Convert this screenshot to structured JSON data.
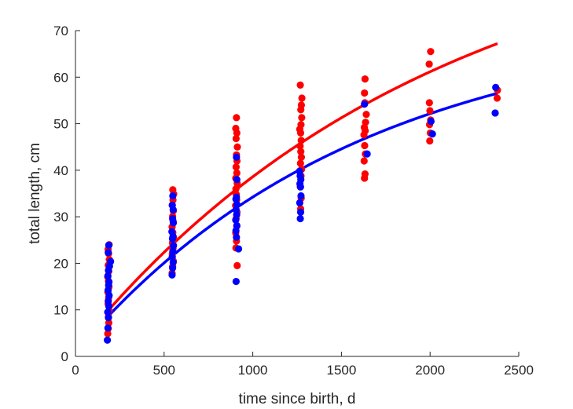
{
  "chart_data": {
    "type": "scatter",
    "xlabel": "time since birth, d",
    "ylabel": "total length, cm",
    "xlim": [
      0,
      2500
    ],
    "ylim": [
      0,
      70
    ],
    "xticks": [
      0,
      500,
      1000,
      1500,
      2000,
      2500
    ],
    "yticks": [
      0,
      10,
      20,
      30,
      40,
      50,
      60,
      70
    ],
    "grid": false,
    "legend": "none",
    "series": [
      {
        "color": "#ff0000",
        "points": [
          [
            182,
            4.9
          ],
          [
            185,
            6.0
          ],
          [
            188,
            7.2
          ],
          [
            186,
            8.5
          ],
          [
            190,
            9.8
          ],
          [
            184,
            11.3
          ],
          [
            187,
            12.6
          ],
          [
            183,
            13.8
          ],
          [
            189,
            14.9
          ],
          [
            186,
            16.2
          ],
          [
            182,
            17.1
          ],
          [
            188,
            18.3
          ],
          [
            185,
            19.6
          ],
          [
            191,
            20.8
          ],
          [
            187,
            22.1
          ],
          [
            184,
            23.0
          ],
          [
            190,
            24.0
          ],
          [
            545,
            17.9
          ],
          [
            548,
            19.3
          ],
          [
            552,
            20.5
          ],
          [
            546,
            22.0
          ],
          [
            550,
            23.2
          ],
          [
            547,
            24.4
          ],
          [
            553,
            25.6
          ],
          [
            549,
            26.6
          ],
          [
            545,
            27.8
          ],
          [
            551,
            29.0
          ],
          [
            548,
            30.1
          ],
          [
            552,
            31.3
          ],
          [
            546,
            32.5
          ],
          [
            550,
            33.6
          ],
          [
            554,
            34.9
          ],
          [
            549,
            35.8
          ],
          [
            905,
            23.3
          ],
          [
            912,
            19.5
          ],
          [
            908,
            24.8
          ],
          [
            904,
            26.5
          ],
          [
            910,
            28.0
          ],
          [
            906,
            29.6
          ],
          [
            911,
            31.0
          ],
          [
            903,
            32.4
          ],
          [
            909,
            33.6
          ],
          [
            907,
            34.8
          ],
          [
            905,
            36.0
          ],
          [
            912,
            37.2
          ],
          [
            904,
            38.3
          ],
          [
            910,
            39.4
          ],
          [
            906,
            40.7
          ],
          [
            911,
            42.0
          ],
          [
            908,
            43.3
          ],
          [
            913,
            45.0
          ],
          [
            906,
            46.8
          ],
          [
            910,
            48.0
          ],
          [
            904,
            49.0
          ],
          [
            908,
            51.3
          ],
          [
            1270,
            31.7
          ],
          [
            1273,
            34.0
          ],
          [
            1268,
            36.5
          ],
          [
            1272,
            38.8
          ],
          [
            1275,
            40.2
          ],
          [
            1269,
            41.5
          ],
          [
            1274,
            42.8
          ],
          [
            1271,
            44.0
          ],
          [
            1267,
            45.2
          ],
          [
            1273,
            46.4
          ],
          [
            1270,
            48.0
          ],
          [
            1265,
            48.8
          ],
          [
            1272,
            49.8
          ],
          [
            1276,
            51.3
          ],
          [
            1271,
            53.0
          ],
          [
            1274,
            54.0
          ],
          [
            1277,
            55.5
          ],
          [
            1268,
            58.3
          ],
          [
            1630,
            38.3
          ],
          [
            1633,
            39.2
          ],
          [
            1628,
            42.0
          ],
          [
            1635,
            43.5
          ],
          [
            1631,
            45.3
          ],
          [
            1627,
            47.6
          ],
          [
            1634,
            48.5
          ],
          [
            1629,
            49.2
          ],
          [
            1636,
            50.3
          ],
          [
            1640,
            52.0
          ],
          [
            1632,
            54.5
          ],
          [
            1630,
            56.6
          ],
          [
            1633,
            59.6
          ],
          [
            1998,
            46.3
          ],
          [
            2001,
            48.0
          ],
          [
            1997,
            49.8
          ],
          [
            2003,
            50.8
          ],
          [
            1999,
            52.8
          ],
          [
            1996,
            54.5
          ],
          [
            1995,
            62.8
          ],
          [
            2003,
            65.5
          ],
          [
            2378,
            55.5
          ],
          [
            2380,
            57.2
          ]
        ]
      },
      {
        "color": "#0000ff",
        "points": [
          [
            180,
            3.5
          ],
          [
            183,
            6.1
          ],
          [
            186,
            8.3
          ],
          [
            182,
            9.5
          ],
          [
            188,
            10.8
          ],
          [
            185,
            11.9
          ],
          [
            190,
            13.1
          ],
          [
            184,
            14.2
          ],
          [
            187,
            15.3
          ],
          [
            189,
            16.0
          ],
          [
            183,
            17.3
          ],
          [
            186,
            18.5
          ],
          [
            192,
            19.4
          ],
          [
            198,
            20.4
          ],
          [
            185,
            22.3
          ],
          [
            188,
            23.9
          ],
          [
            545,
            17.5
          ],
          [
            548,
            19.0
          ],
          [
            551,
            20.2
          ],
          [
            546,
            21.4
          ],
          [
            549,
            22.6
          ],
          [
            553,
            23.8
          ],
          [
            547,
            25.3
          ],
          [
            550,
            25.8
          ],
          [
            544,
            26.8
          ],
          [
            552,
            28.7
          ],
          [
            548,
            29.6
          ],
          [
            551,
            31.5
          ],
          [
            546,
            32.5
          ],
          [
            549,
            34.5
          ],
          [
            906,
            16.1
          ],
          [
            920,
            23.1
          ],
          [
            908,
            25.6
          ],
          [
            905,
            27.0
          ],
          [
            910,
            28.1
          ],
          [
            904,
            29.3
          ],
          [
            909,
            30.4
          ],
          [
            906,
            31.5
          ],
          [
            911,
            32.6
          ],
          [
            905,
            33.8
          ],
          [
            908,
            34.2
          ],
          [
            910,
            38.0
          ],
          [
            908,
            42.8
          ],
          [
            1268,
            29.6
          ],
          [
            1270,
            31.0
          ],
          [
            1265,
            33.0
          ],
          [
            1272,
            34.5
          ],
          [
            1269,
            36.4
          ],
          [
            1266,
            37.1
          ],
          [
            1271,
            38.0
          ],
          [
            1267,
            38.8
          ],
          [
            1264,
            39.8
          ],
          [
            1645,
            43.5
          ],
          [
            1630,
            54.2
          ],
          [
            2013,
            47.8
          ],
          [
            2005,
            50.5
          ],
          [
            2367,
            52.3
          ],
          [
            2370,
            57.8
          ]
        ]
      },
      {
        "color": "#ff0000",
        "type": "line",
        "curve": {
          "model": "von_bertalanffy",
          "Linf": 96.5,
          "k": 0.000494,
          "y0": 1.6
        },
        "x_range": [
          185,
          2380
        ]
      },
      {
        "color": "#0000ff",
        "type": "line",
        "curve": {
          "model": "von_bertalanffy",
          "Linf": 72.9,
          "k": 0.000623,
          "y0": 0.8
        },
        "x_range": [
          185,
          2380
        ]
      }
    ]
  }
}
